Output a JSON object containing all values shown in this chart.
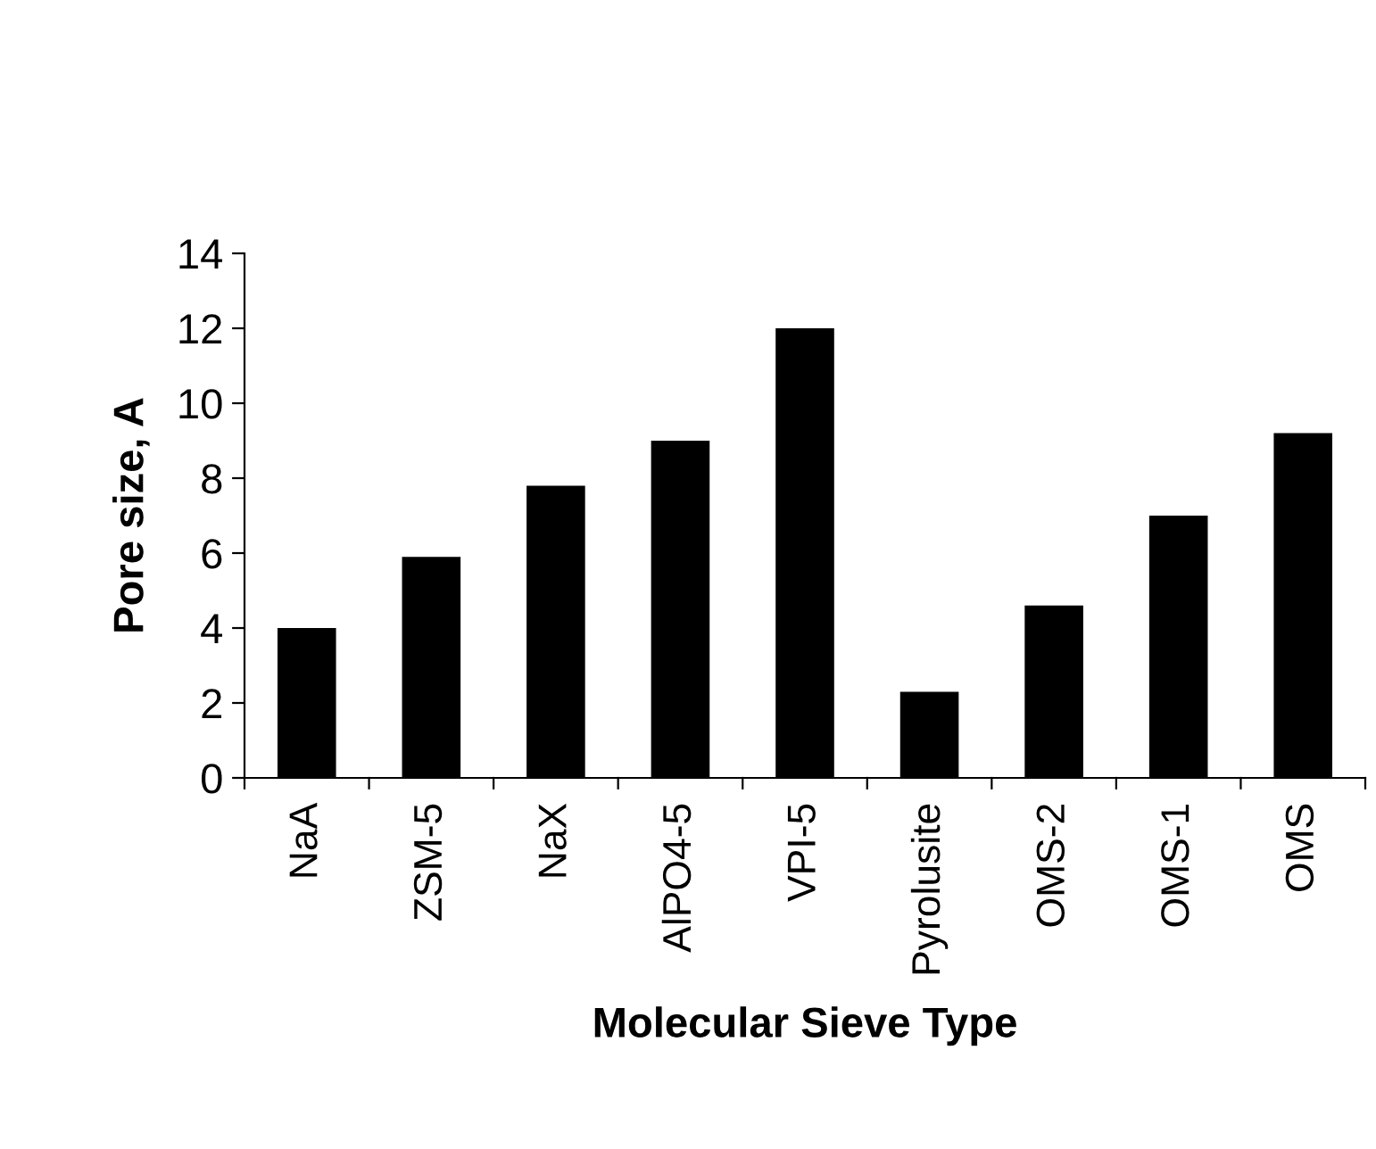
{
  "chart_data": {
    "type": "bar",
    "xlabel": "Molecular Sieve Type",
    "ylabel": "Pore size, A",
    "categories": [
      "NaA",
      "ZSM-5",
      "NaX",
      "AlPO4-5",
      "VPI-5",
      "Pyrolusite",
      "OMS-2",
      "OMS-1",
      "OMS"
    ],
    "values": [
      4.0,
      5.9,
      7.8,
      9.0,
      12.0,
      2.3,
      4.6,
      7.0,
      9.2
    ],
    "color": "#000000",
    "ylim": [
      0,
      14
    ],
    "yticks": [
      0,
      2,
      4,
      6,
      8,
      10,
      12,
      14
    ],
    "grid": false,
    "legend": false
  }
}
